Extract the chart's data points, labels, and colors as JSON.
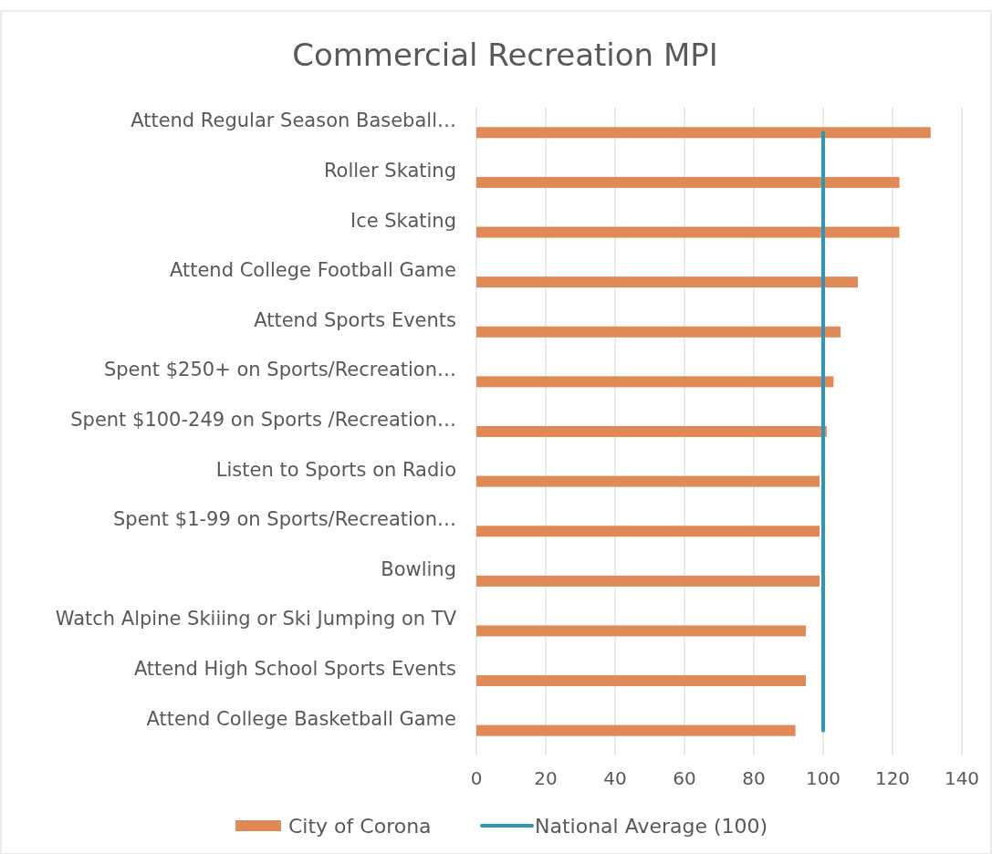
{
  "chart_data": {
    "type": "bar",
    "orientation": "horizontal",
    "title": "Commercial Recreation MPI",
    "categories": [
      "Attend Regular Season Baseball…",
      "Roller Skating",
      "Ice Skating",
      "Attend College Football Game",
      "Attend Sports Events",
      "Spent $250+ on Sports/Recreation…",
      "Spent $100-249 on Sports /Recreation…",
      "Listen to Sports on Radio",
      "Spent $1-99 on Sports/Recreation…",
      "Bowling",
      "Watch Alpine Skiiing or Ski Jumping on TV",
      "Attend High School Sports Events",
      "Attend College Basketball Game"
    ],
    "series": [
      {
        "name": "City of Corona",
        "color": "#e08b57",
        "values": [
          131,
          122,
          122,
          110,
          105,
          103,
          101,
          99,
          99,
          99,
          95,
          95,
          92
        ]
      },
      {
        "name": "National Average (100)",
        "type": "line",
        "color": "#2e95b8",
        "values": [
          100,
          100,
          100,
          100,
          100,
          100,
          100,
          100,
          100,
          100,
          100,
          100,
          100
        ]
      }
    ],
    "xlim": [
      0,
      140
    ],
    "xticks": [
      0,
      20,
      40,
      60,
      80,
      100,
      120,
      140
    ],
    "grid": "x",
    "legend": "bottom"
  }
}
